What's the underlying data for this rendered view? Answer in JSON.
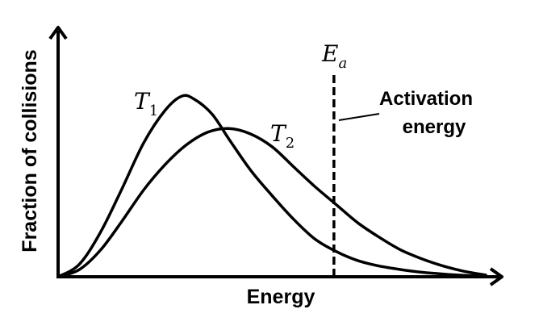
{
  "chart_data": {
    "type": "line",
    "title": "",
    "xlabel": "Energy",
    "ylabel": "Fraction of collisions",
    "xlim": [
      0,
      10
    ],
    "ylim": [
      0,
      1
    ],
    "grid": false,
    "series": [
      {
        "name": "T",
        "subscript": "1",
        "x": [
          0,
          0.5,
          1.0,
          1.5,
          2.0,
          2.5,
          2.9,
          3.2,
          3.6,
          4.0,
          4.5,
          5.0,
          5.5,
          6.0,
          6.5,
          7.0,
          7.5,
          8.0,
          8.5,
          9.0,
          9.5,
          10.0
        ],
        "y": [
          0,
          0.07,
          0.25,
          0.49,
          0.74,
          0.92,
          1.0,
          0.98,
          0.9,
          0.76,
          0.59,
          0.45,
          0.32,
          0.21,
          0.14,
          0.09,
          0.06,
          0.04,
          0.025,
          0.015,
          0.008,
          0.004
        ]
      },
      {
        "name": "T",
        "subscript": "2",
        "x": [
          0,
          0.5,
          1.0,
          1.5,
          2.0,
          2.5,
          3.0,
          3.5,
          4.0,
          4.5,
          5.0,
          5.5,
          6.0,
          6.5,
          7.0,
          7.5,
          8.0,
          8.5,
          9.0,
          9.5,
          10.0
        ],
        "y": [
          0,
          0.04,
          0.15,
          0.31,
          0.48,
          0.62,
          0.73,
          0.8,
          0.82,
          0.79,
          0.72,
          0.61,
          0.5,
          0.4,
          0.3,
          0.22,
          0.15,
          0.1,
          0.06,
          0.03,
          0.01
        ]
      }
    ],
    "threshold": {
      "x": 6.45,
      "label_main": "E",
      "label_sub": "a",
      "annotation_lines": [
        "Activation",
        "energy"
      ],
      "style": "dashed"
    }
  }
}
